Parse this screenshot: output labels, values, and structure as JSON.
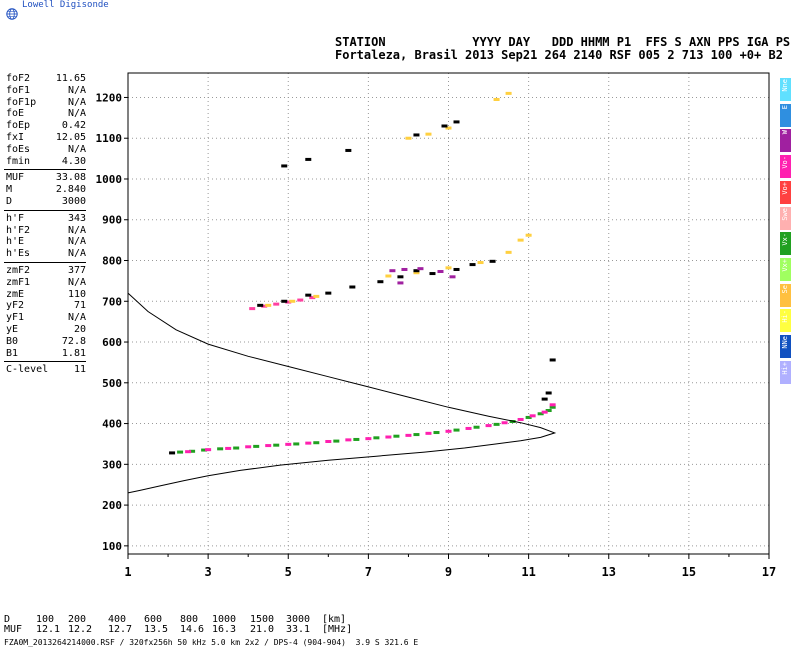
{
  "brand": "Lowell Digisonde",
  "header": {
    "line1": "STATION            YYYY DAY   DDD HHMM P1  FFS S AXN PPS IGA PS",
    "line2": "Fortaleza, Brasil 2013 Sep21 264 2140 RSF 005 2 713 100 +0+ B2"
  },
  "params": [
    {
      "name": "foF2",
      "value": "11.65"
    },
    {
      "name": "foF1",
      "value": "N/A"
    },
    {
      "name": "foF1p",
      "value": "N/A"
    },
    {
      "name": "foE",
      "value": "N/A"
    },
    {
      "name": "foEp",
      "value": "0.42"
    },
    {
      "name": "fxI",
      "value": "12.05"
    },
    {
      "name": "foEs",
      "value": "N/A"
    },
    {
      "name": "fmin",
      "value": "4.30"
    },
    {
      "name": "MUF",
      "value": "33.08"
    },
    {
      "name": "M",
      "value": "2.840"
    },
    {
      "name": "D",
      "value": "3000"
    },
    {
      "name": "h'F",
      "value": "343"
    },
    {
      "name": "h'F2",
      "value": "N/A"
    },
    {
      "name": "h'E",
      "value": "N/A"
    },
    {
      "name": "h'Es",
      "value": "N/A"
    },
    {
      "name": "zmF2",
      "value": "377"
    },
    {
      "name": "zmF1",
      "value": "N/A"
    },
    {
      "name": "zmE",
      "value": "110"
    },
    {
      "name": "yF2",
      "value": "71"
    },
    {
      "name": "yF1",
      "value": "N/A"
    },
    {
      "name": "yE",
      "value": "20"
    },
    {
      "name": "B0",
      "value": "72.8"
    },
    {
      "name": "B1",
      "value": "1.81"
    },
    {
      "name": "C-level",
      "value": "11"
    }
  ],
  "legend": [
    {
      "label": "Nne",
      "color": "#60e0ff"
    },
    {
      "label": "E",
      "color": "#2f8fe0"
    },
    {
      "label": "W",
      "color": "#a020a0"
    },
    {
      "label": "Vo-",
      "color": "#ff20b0"
    },
    {
      "label": "Vo+",
      "color": "#ff4040"
    },
    {
      "label": "Swe",
      "color": "#ffb0b0"
    },
    {
      "label": "Vx-",
      "color": "#20a020"
    },
    {
      "label": "Vx+",
      "color": "#a0ff60"
    },
    {
      "label": "Se",
      "color": "#ffc040"
    },
    {
      "label": "Hi-",
      "color": "#ffff40"
    },
    {
      "label": "NNe",
      "color": "#1050c0"
    },
    {
      "label": "Hi+",
      "color": "#b0b0ff"
    }
  ],
  "muf_table": {
    "d_label": "D",
    "d_values": [
      "100",
      "200",
      "400",
      "600",
      "800",
      "1000",
      "1500",
      "3000"
    ],
    "d_unit": "[km]",
    "m_label": "MUF",
    "m_values": [
      "12.1",
      "12.2",
      "12.7",
      "13.5",
      "14.6",
      "16.3",
      "21.0",
      "33.1"
    ],
    "m_unit": "[MHz]"
  },
  "footer": "FZA0M_2013264214000.RSF / 320fx256h 50 kHz 5.0 km 2x2 / DPS-4 (904-904)  3.9 S 321.6 E",
  "chart_data": {
    "type": "scatter",
    "xlim": [
      1,
      17
    ],
    "ylim": [
      80,
      1260
    ],
    "x_ticks": [
      "1",
      "3",
      "5",
      "7",
      "9",
      "11",
      "13",
      "15",
      "17"
    ],
    "y_ticks": [
      "100",
      "200",
      "300",
      "400",
      "500",
      "600",
      "700",
      "800",
      "900",
      "1000",
      "1100",
      "1200"
    ],
    "grid": true,
    "series": [
      {
        "color": "#20a020",
        "points": [
          [
            2.3,
            330
          ],
          [
            2.6,
            332
          ],
          [
            2.9,
            335
          ],
          [
            3.3,
            338
          ],
          [
            3.7,
            340
          ],
          [
            4.2,
            344
          ],
          [
            4.7,
            347
          ],
          [
            5.2,
            350
          ],
          [
            5.7,
            353
          ],
          [
            6.2,
            357
          ],
          [
            6.7,
            361
          ],
          [
            7.2,
            365
          ],
          [
            7.7,
            369
          ],
          [
            8.2,
            373
          ],
          [
            8.7,
            378
          ],
          [
            9.2,
            384
          ],
          [
            9.7,
            391
          ],
          [
            10.2,
            398
          ],
          [
            10.6,
            405
          ],
          [
            11.0,
            415
          ],
          [
            11.3,
            424
          ],
          [
            11.5,
            432
          ],
          [
            11.6,
            440
          ]
        ]
      },
      {
        "color": "#ff20b0",
        "points": [
          [
            2.5,
            331
          ],
          [
            3.0,
            336
          ],
          [
            3.5,
            339
          ],
          [
            4.0,
            343
          ],
          [
            4.5,
            346
          ],
          [
            5.0,
            349
          ],
          [
            5.5,
            352
          ],
          [
            6.0,
            356
          ],
          [
            6.5,
            360
          ],
          [
            7.0,
            363
          ],
          [
            7.5,
            367
          ],
          [
            8.0,
            371
          ],
          [
            8.5,
            376
          ],
          [
            9.0,
            381
          ],
          [
            9.5,
            388
          ],
          [
            10.0,
            395
          ],
          [
            10.4,
            402
          ],
          [
            10.8,
            410
          ],
          [
            11.1,
            419
          ],
          [
            11.4,
            428
          ],
          [
            11.6,
            446
          ]
        ]
      },
      {
        "color": "#ff40a0",
        "points": [
          [
            4.1,
            682
          ],
          [
            4.4,
            688
          ],
          [
            4.7,
            693
          ],
          [
            5.0,
            698
          ],
          [
            5.3,
            703
          ],
          [
            5.6,
            709
          ]
        ]
      },
      {
        "color": "#ffd040",
        "points": [
          [
            4.5,
            690
          ],
          [
            5.1,
            700
          ],
          [
            5.7,
            712
          ],
          [
            7.5,
            762
          ],
          [
            8.2,
            770
          ],
          [
            9.0,
            782
          ],
          [
            9.8,
            795
          ],
          [
            10.5,
            820
          ],
          [
            10.8,
            850
          ],
          [
            11.0,
            862
          ],
          [
            8.0,
            1100
          ],
          [
            8.5,
            1110
          ],
          [
            9.0,
            1125
          ],
          [
            10.2,
            1195
          ],
          [
            10.5,
            1210
          ]
        ]
      },
      {
        "color": "#000000",
        "points": [
          [
            2.1,
            328
          ],
          [
            4.3,
            690
          ],
          [
            4.9,
            700
          ],
          [
            5.5,
            715
          ],
          [
            6.0,
            720
          ],
          [
            6.6,
            735
          ],
          [
            7.3,
            748
          ],
          [
            7.8,
            760
          ],
          [
            8.2,
            775
          ],
          [
            8.6,
            768
          ],
          [
            9.2,
            778
          ],
          [
            9.6,
            790
          ],
          [
            10.1,
            798
          ],
          [
            5.5,
            1048
          ],
          [
            6.5,
            1070
          ],
          [
            8.2,
            1108
          ],
          [
            8.9,
            1130
          ],
          [
            9.2,
            1140
          ],
          [
            4.9,
            1032
          ],
          [
            11.6,
            556
          ],
          [
            11.5,
            475
          ],
          [
            11.4,
            460
          ]
        ]
      },
      {
        "color": "#a020a0",
        "points": [
          [
            7.6,
            775
          ],
          [
            7.9,
            778
          ],
          [
            8.3,
            780
          ],
          [
            8.8,
            773
          ],
          [
            9.1,
            760
          ],
          [
            7.8,
            745
          ]
        ]
      }
    ],
    "profile": {
      "x": [
        1.0,
        1.3,
        1.8,
        2.4,
        3.0,
        3.8,
        4.8,
        6.0,
        7.2,
        8.4,
        9.4,
        10.2,
        10.8,
        11.3,
        11.65,
        11.3,
        10.8,
        10.0,
        9.0,
        8.0,
        7.0,
        6.0,
        5.0,
        4.0,
        3.0,
        2.2,
        1.5,
        1.0
      ],
      "y": [
        230,
        236,
        247,
        260,
        272,
        285,
        298,
        310,
        320,
        330,
        340,
        350,
        358,
        366,
        377,
        390,
        402,
        418,
        440,
        465,
        490,
        515,
        540,
        565,
        595,
        630,
        675,
        720
      ]
    }
  }
}
